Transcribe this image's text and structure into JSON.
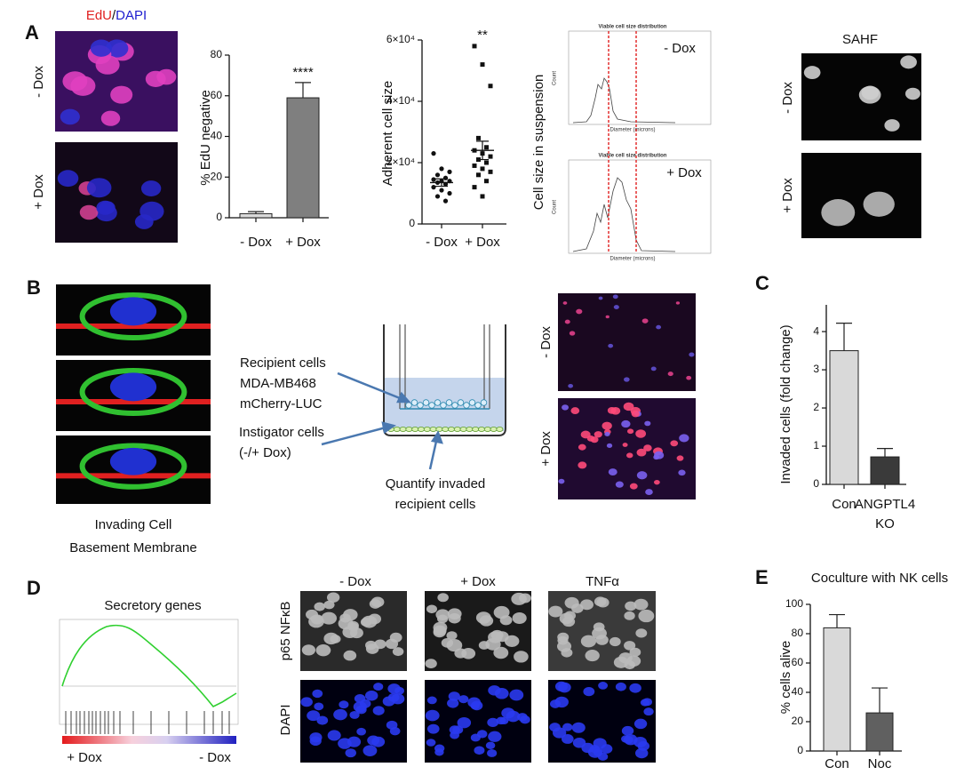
{
  "panels": {
    "a": {
      "letter": "A",
      "stain_edu": "EdU",
      "stain_sep": "/",
      "stain_dapi": "DAPI",
      "row_minus": "- Dox",
      "row_plus": "+ Dox",
      "hist_title_1": "Viable cell size distribution",
      "hist_title_2": "Viable cell size distribution",
      "hist_minus": "- Dox",
      "hist_plus": "+ Dox",
      "hist_ylabel": "Cell size in suspension",
      "hist_xlabel_1": "Diameter (microns)",
      "hist_xlabel_2": "Diameter (microns)",
      "hist_count_1": "Count",
      "hist_count_2": "Count",
      "sahf": "SAHF",
      "sahf_minus": "- Dox",
      "sahf_plus": "+ Dox"
    },
    "b": {
      "letter": "B",
      "invading": "Invading Cell",
      "membrane": "Basement Membrane",
      "recipient": [
        "Recipient cells",
        "MDA-MB468",
        "mCherry-LUC"
      ],
      "instigator": [
        "Instigator cells",
        "(-/+ Dox)"
      ],
      "quantify": [
        "Quantify invaded",
        "recipient cells"
      ],
      "img_minus": "- Dox",
      "img_plus": "+ Dox"
    },
    "c": {
      "letter": "C"
    },
    "d": {
      "letter": "D",
      "gsea_title": "Secretory genes",
      "gsea_left": "+ Dox",
      "gsea_right": "- Dox",
      "col_minus": "- Dox",
      "col_plus": "+ Dox",
      "col_tnf": "TNFα",
      "row_p65": "p65 NFκB",
      "row_dapi": "DAPI"
    },
    "e": {
      "letter": "E"
    }
  },
  "chart_data": [
    {
      "type": "bar",
      "ylabel": "% EdU negative",
      "categories": [
        "- Dox",
        "+ Dox"
      ],
      "values": [
        2,
        59
      ],
      "errors": [
        1,
        7.5
      ],
      "colors": [
        "#d9d9d9",
        "#7f7f7f"
      ],
      "ylim": [
        0,
        80
      ],
      "yticks": [
        0,
        20,
        40,
        60,
        80
      ],
      "annotation": "****"
    },
    {
      "type": "scatter",
      "ylabel": "Adherent  cell size",
      "categories": [
        "- Dox",
        "+ Dox"
      ],
      "points": [
        [
          23000,
          18000,
          17000,
          16000,
          15000,
          14500,
          14000,
          14000,
          13500,
          13000,
          12000,
          11000,
          10000,
          9000,
          7500
        ],
        [
          58000,
          52000,
          45000,
          28000,
          25000,
          24000,
          23000,
          22000,
          21000,
          20000,
          19000,
          18000,
          17000,
          16000,
          14000,
          12000,
          9000
        ]
      ],
      "means": [
        13500,
        24000
      ],
      "errors": [
        1200,
        3000
      ],
      "ylim": [
        0,
        60000
      ],
      "yticks": [
        0,
        {
          "value": 20000,
          "label": "2×10⁴"
        },
        {
          "value": 40000,
          "label": "4×10⁴"
        },
        {
          "value": 60000,
          "label": "6×10⁴"
        }
      ],
      "annotation": "**"
    },
    {
      "type": "bar",
      "ylabel": "Invaded cells (fold change)",
      "categories": [
        "Con",
        "ANGPTL4 KO"
      ],
      "values": [
        3.5,
        0.72
      ],
      "errors": [
        0.72,
        0.22
      ],
      "colors": [
        "#d9d9d9",
        "#3a3a3a"
      ],
      "ylim": [
        0,
        4.7
      ],
      "yticks": [
        0,
        1,
        2,
        3,
        4
      ]
    },
    {
      "type": "bar",
      "title": "Coculture with NK cells",
      "ylabel": "% cells alive",
      "categories": [
        "Con",
        "Noc"
      ],
      "values": [
        84,
        26
      ],
      "errors": [
        9,
        17
      ],
      "colors": [
        "#d9d9d9",
        "#606060"
      ],
      "ylim": [
        0,
        100
      ],
      "yticks": [
        0,
        20,
        40,
        60,
        80,
        100
      ]
    }
  ]
}
